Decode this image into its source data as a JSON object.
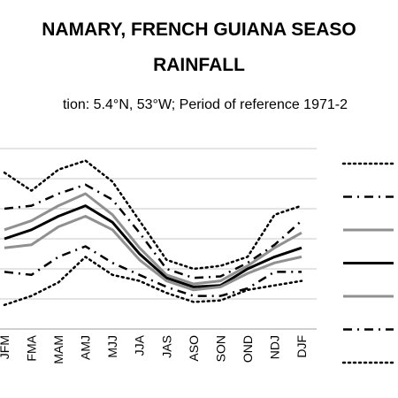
{
  "chart_data": {
    "type": "line",
    "title_line1": "NAMARY, FRENCH GUIANA SEASO",
    "title_line2": "RAINFALL",
    "subtitle": "tion: 5.4°N, 53°W; Period of reference 1971-2",
    "categories": [
      "JFM",
      "FMA",
      "MAM",
      "AMJ",
      "MJJ",
      "JJA",
      "JAS",
      "ASO",
      "SON",
      "OND",
      "NDJ",
      "DJF"
    ],
    "ylim": [
      0,
      6
    ],
    "grid": true,
    "legend_position": "right",
    "series": [
      {
        "style": "dotted",
        "color": "#000000",
        "values": [
          5.2,
          4.6,
          5.3,
          5.6,
          4.9,
          3.6,
          2.3,
          2.0,
          2.1,
          2.4,
          3.8,
          4.1
        ]
      },
      {
        "style": "dashdot",
        "color": "#000000",
        "values": [
          4.0,
          4.1,
          4.5,
          4.8,
          4.3,
          3.2,
          2.0,
          1.7,
          1.75,
          2.2,
          2.8,
          3.6
        ]
      },
      {
        "style": "solid",
        "color": "#909090",
        "values": [
          3.3,
          3.6,
          4.1,
          4.5,
          3.8,
          2.7,
          1.8,
          1.5,
          1.6,
          2.1,
          2.7,
          3.2
        ]
      },
      {
        "style": "solid",
        "color": "#000000",
        "values": [
          3.0,
          3.3,
          3.75,
          4.1,
          3.55,
          2.5,
          1.7,
          1.4,
          1.45,
          2.0,
          2.4,
          2.7
        ]
      },
      {
        "style": "solid",
        "color": "#909090",
        "values": [
          2.7,
          2.8,
          3.4,
          3.75,
          3.3,
          2.3,
          1.6,
          1.3,
          1.4,
          1.85,
          2.2,
          2.4
        ]
      },
      {
        "style": "dashdot",
        "color": "#000000",
        "values": [
          1.9,
          1.8,
          2.4,
          2.75,
          2.2,
          1.8,
          1.4,
          1.1,
          1.1,
          1.35,
          1.9,
          1.9
        ]
      },
      {
        "style": "dotted",
        "color": "#000000",
        "values": [
          0.8,
          1.1,
          1.55,
          2.4,
          1.8,
          1.6,
          1.2,
          0.9,
          0.95,
          1.3,
          1.45,
          1.6
        ]
      }
    ]
  }
}
